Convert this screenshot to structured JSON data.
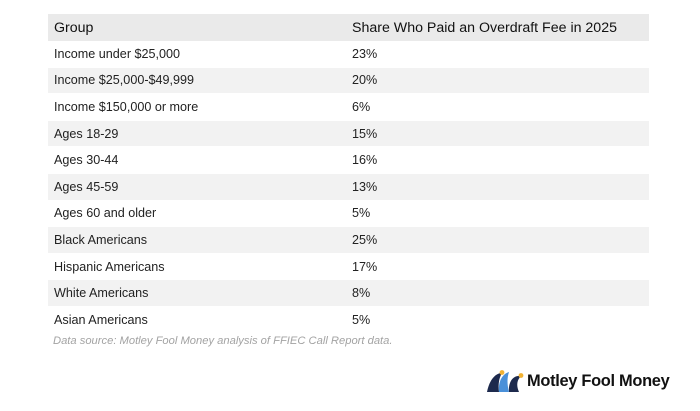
{
  "chart_data": {
    "type": "table",
    "columns": [
      "Group",
      "Share Who Paid an Overdraft Fee in 2025"
    ],
    "rows": [
      [
        "Income under $25,000",
        "23%"
      ],
      [
        "Income $25,000-$49,999",
        "20%"
      ],
      [
        "Income $150,000 or more",
        "6%"
      ],
      [
        "Ages 18-29",
        "15%"
      ],
      [
        "Ages 30-44",
        "16%"
      ],
      [
        "Ages 45-59",
        "13%"
      ],
      [
        "Ages 60 and older",
        "5%"
      ],
      [
        "Black Americans",
        "25%"
      ],
      [
        "Hispanic Americans",
        "17%"
      ],
      [
        "White Americans",
        "8%"
      ],
      [
        "Asian Americans",
        "5%"
      ]
    ],
    "source": "Data source: Motley Fool Money analysis of FFIEC Call Report data."
  },
  "logo": {
    "text": "Motley Fool Money",
    "colors": {
      "navy": "#1d2a4d",
      "blue": "#4a90d9",
      "gold": "#f2b233"
    }
  }
}
